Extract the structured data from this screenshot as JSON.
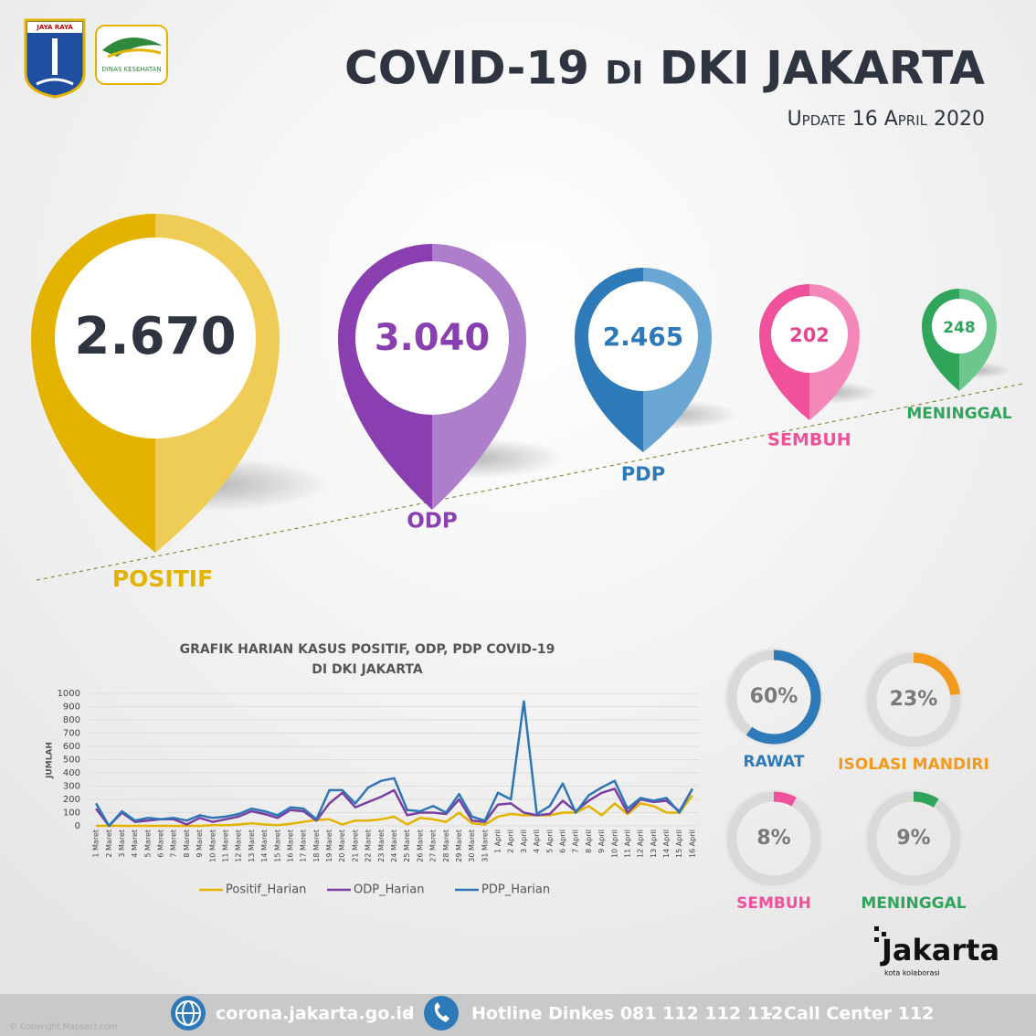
{
  "header": {
    "logo_left": "JAYA RAYA",
    "logo_right": "DINAS KESEHATAN",
    "title": "COVID-19 di DKI JAKARTA",
    "update": "Update 16 April 2020"
  },
  "pins": [
    {
      "value": "2.670",
      "label": "POSITIF",
      "color": "#e3b300",
      "light": "#efcc55",
      "text_color": "#2e3440"
    },
    {
      "value": "3.040",
      "label": "ODP",
      "color": "#8a3fb0",
      "light": "#ad7fcb",
      "text_color": "#8a3fb0"
    },
    {
      "value": "2.465",
      "label": "PDP",
      "color": "#2e7ab8",
      "light": "#6aa6d4",
      "text_color": "#2e7ab8"
    },
    {
      "value": "202",
      "label": "SEMBUH",
      "color": "#f0519a",
      "light": "#f588bb",
      "text_color": "#e6468f"
    },
    {
      "value": "248",
      "label": "MENINGGAL",
      "color": "#2ea55a",
      "light": "#6cc78d",
      "text_color": "#2ea55a"
    }
  ],
  "chart_data": [
    {
      "type": "line",
      "title": [
        "GRAFIK HARIAN KASUS POSITIF, ODP, PDP COVID-19",
        "DI DKI JAKARTA"
      ],
      "ylabel": "JUMLAH",
      "categories": [
        "1 Maret",
        "2 Maret",
        "3 Maret",
        "4 Maret",
        "5 Maret",
        "6 Maret",
        "7 Maret",
        "8 Maret",
        "9 Maret",
        "10 Maret",
        "11 Maret",
        "12 Maret",
        "13 Maret",
        "14 Maret",
        "15 Maret",
        "16 Maret",
        "17 Maret",
        "18 Maret",
        "19 Maret",
        "20 Maret",
        "21 Maret",
        "22 Maret",
        "23 Maret",
        "24 Maret",
        "25 Maret",
        "26 Maret",
        "27 Maret",
        "28 Maret",
        "29 Maret",
        "30 Maret",
        "31 Maret",
        "1 April",
        "2 April",
        "3 April",
        "4 April",
        "5 April",
        "6 April",
        "7 April",
        "8 April",
        "9 April",
        "10 April",
        "11 April",
        "12 April",
        "13 April",
        "14 April",
        "15 April",
        "16 April"
      ],
      "series": [
        {
          "name": "Positif_Harian",
          "color": "#e3b300",
          "values": [
            0,
            2,
            0,
            0,
            0,
            0,
            0,
            0,
            0,
            5,
            5,
            10,
            20,
            10,
            5,
            15,
            30,
            45,
            50,
            10,
            40,
            40,
            50,
            70,
            10,
            60,
            50,
            30,
            100,
            20,
            10,
            70,
            90,
            80,
            80,
            80,
            100,
            100,
            150,
            80,
            170,
            90,
            170,
            150,
            100,
            100,
            230
          ]
        },
        {
          "name": "ODP_Harian",
          "color": "#7a3fa0",
          "values": [
            130,
            0,
            100,
            30,
            40,
            50,
            50,
            10,
            60,
            30,
            50,
            70,
            110,
            90,
            60,
            120,
            110,
            40,
            170,
            250,
            140,
            180,
            220,
            270,
            80,
            100,
            100,
            90,
            200,
            40,
            30,
            160,
            170,
            100,
            80,
            90,
            190,
            110,
            190,
            250,
            280,
            100,
            200,
            180,
            190,
            110,
            280
          ]
        },
        {
          "name": "PDP_Harian",
          "color": "#2e75b6",
          "values": [
            170,
            0,
            110,
            40,
            60,
            50,
            60,
            40,
            80,
            60,
            70,
            90,
            130,
            110,
            80,
            140,
            130,
            50,
            270,
            270,
            170,
            290,
            340,
            360,
            120,
            110,
            150,
            100,
            240,
            70,
            40,
            250,
            200,
            940,
            90,
            150,
            320,
            100,
            230,
            290,
            340,
            130,
            210,
            190,
            210,
            100,
            280
          ]
        }
      ],
      "ylim": [
        0,
        1000
      ],
      "yticks": [
        0,
        100,
        200,
        300,
        400,
        500,
        600,
        700,
        800,
        900,
        1000
      ],
      "grid": true
    },
    {
      "type": "donut",
      "title": "RAWAT",
      "values": [
        60
      ],
      "value_labels": [
        "60%"
      ],
      "color": "#2e7ab8"
    },
    {
      "type": "donut",
      "title": "ISOLASI MANDIRI",
      "values": [
        23
      ],
      "value_labels": [
        "23%"
      ],
      "color": "#f29a1e"
    },
    {
      "type": "donut",
      "title": "SEMBUH",
      "values": [
        8
      ],
      "value_labels": [
        "8%"
      ],
      "color": "#f0519a"
    },
    {
      "type": "donut",
      "title": "MENINGGAL",
      "values": [
        9
      ],
      "value_labels": [
        "9%"
      ],
      "color": "#2ea55a"
    }
  ],
  "brand": {
    "name": "Jakarta",
    "tagline": "kota kolaborasi"
  },
  "footer": {
    "website": "corona.jakarta.go.id",
    "separator": "-",
    "hotline": "Hotline Dinkes 081 112 112 112",
    "separator2": "-",
    "call_center": "Call Center 112",
    "copyright": "© Copyright Mapsect.com"
  }
}
